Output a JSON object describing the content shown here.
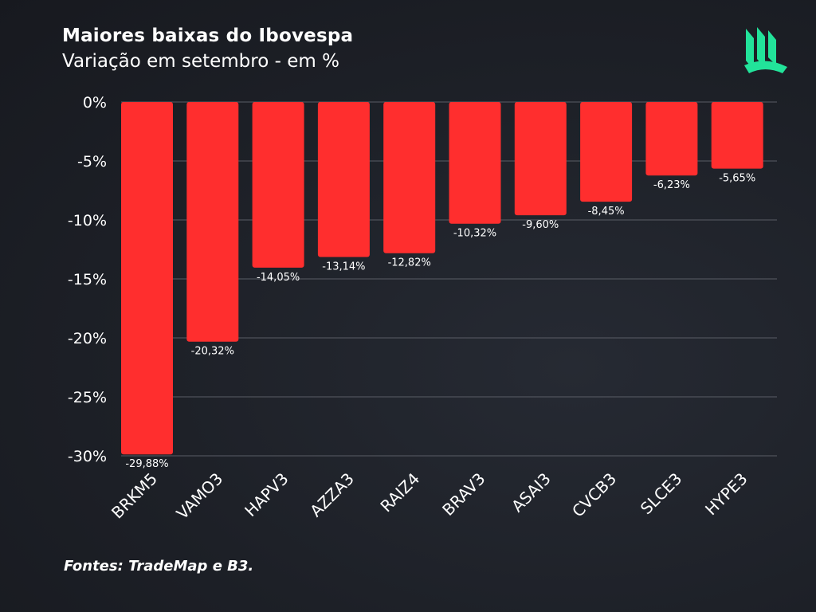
{
  "header": {
    "title": "Maiores baixas do Ibovespa",
    "subtitle": "Variação em setembro - em %"
  },
  "footer": {
    "source": "Fontes: TradeMap e B3."
  },
  "colors": {
    "bar": "#ff2e2e",
    "grid": "#5a5d66",
    "logo": "#22e39a",
    "text": "#ffffff"
  },
  "icons": {
    "logo": "book-pages-logo-icon"
  },
  "chart_data": {
    "type": "bar",
    "title": "Maiores baixas do Ibovespa",
    "subtitle": "Variação em setembro - em %",
    "categories": [
      "BRKM5",
      "VAMO3",
      "HAPV3",
      "AZZA3",
      "RAIZ4",
      "BRAV3",
      "ASAI3",
      "CVCB3",
      "SLCE3",
      "HYPE3"
    ],
    "values": [
      -29.88,
      -20.32,
      -14.05,
      -13.14,
      -12.82,
      -10.32,
      -9.6,
      -8.45,
      -6.23,
      -5.65
    ],
    "value_labels": [
      "-29,88%",
      "-20,32%",
      "-14,05%",
      "-13,14%",
      "-12,82%",
      "-10,32%",
      "-9,60%",
      "-8,45%",
      "-6,23%",
      "-5,65%"
    ],
    "yticks": [
      0,
      -5,
      -10,
      -15,
      -20,
      -25,
      -30
    ],
    "ytick_labels": [
      "0%",
      "-5%",
      "-10%",
      "-15%",
      "-20%",
      "-25%",
      "-30%"
    ],
    "ylim": [
      -30,
      0
    ],
    "grid": true,
    "xlabel": "",
    "ylabel": ""
  }
}
